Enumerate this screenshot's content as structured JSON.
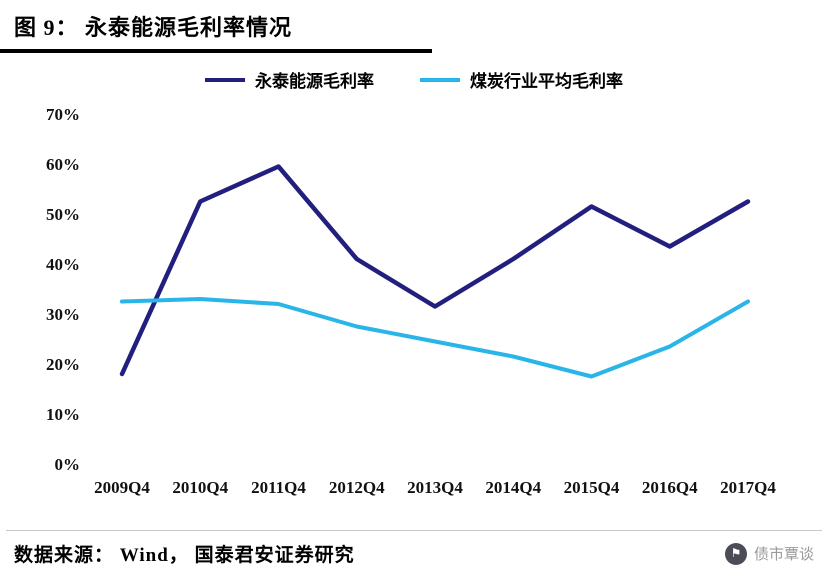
{
  "header": {
    "title": "图 9： 永泰能源毛利率情况"
  },
  "legend": [
    {
      "label": "永泰能源毛利率",
      "color": "#221F7E"
    },
    {
      "label": "煤炭行业平均毛利率",
      "color": "#29B5E8"
    }
  ],
  "chart_data": {
    "type": "line",
    "title": "永泰能源毛利率情况",
    "categories": [
      "2009Q4",
      "2010Q4",
      "2011Q4",
      "2012Q4",
      "2013Q4",
      "2014Q4",
      "2015Q4",
      "2016Q4",
      "2017Q4"
    ],
    "series": [
      {
        "name": "永泰能源毛利率",
        "color": "#221F7E",
        "values": [
          18,
          52.5,
          59.5,
          41,
          31.5,
          41,
          51.5,
          43.5,
          52.5
        ]
      },
      {
        "name": "煤炭行业平均毛利率",
        "color": "#29B5E8",
        "values": [
          32.5,
          33,
          32,
          27.5,
          24.5,
          21.5,
          17.5,
          23.5,
          32.5
        ]
      }
    ],
    "ylim": [
      0,
      70
    ],
    "ytick_step": 10,
    "ytick_labels": [
      "0%",
      "10%",
      "20%",
      "30%",
      "40%",
      "50%",
      "60%",
      "70%"
    ],
    "grid": false,
    "legend_position": "top"
  },
  "footer": {
    "source": "数据来源： Wind， 国泰君安证券研究",
    "watermark": "债市覃谈",
    "watermark_icon": "⚑"
  }
}
